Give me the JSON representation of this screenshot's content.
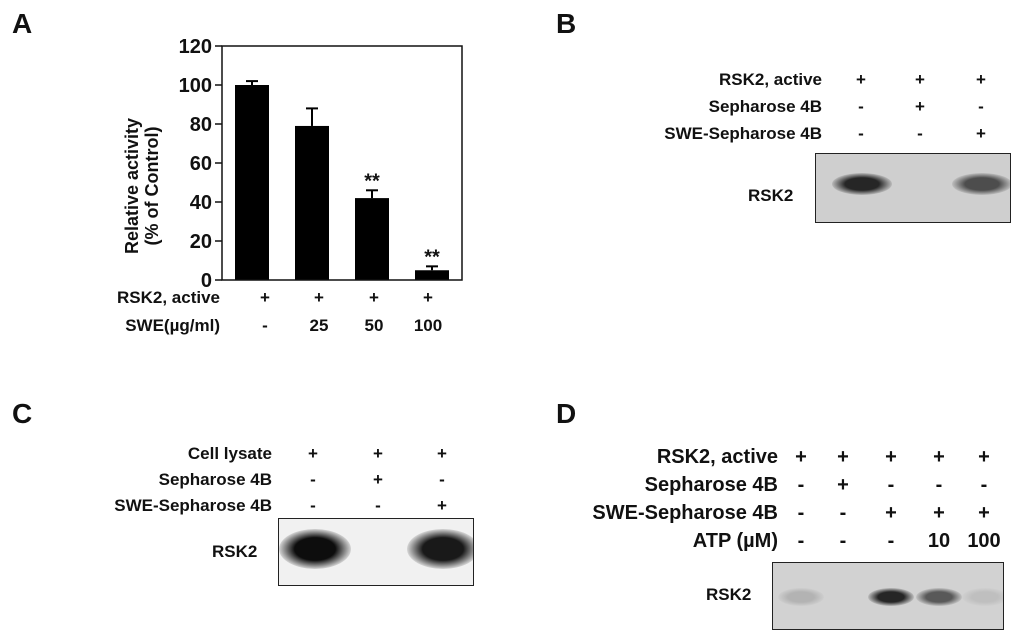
{
  "panels": {
    "a": {
      "letter": "A",
      "conditions": [
        {
          "label": "RSK2, active",
          "values": [
            "+",
            "+",
            "+",
            "+"
          ]
        },
        {
          "label": "SWE(µg/ml)",
          "values": [
            "-",
            "25",
            "50",
            "100"
          ]
        }
      ]
    },
    "b": {
      "letter": "B",
      "conditions": [
        {
          "label": "RSK2, active",
          "values": [
            "+",
            "+",
            "+"
          ]
        },
        {
          "label": "Sepharose 4B",
          "values": [
            "-",
            "+",
            "-"
          ]
        },
        {
          "label": "SWE-Sepharose 4B",
          "values": [
            "-",
            "-",
            "+"
          ]
        }
      ],
      "blot_label": "RSK2",
      "bands": [
        0.85,
        0.0,
        0.7
      ]
    },
    "c": {
      "letter": "C",
      "conditions": [
        {
          "label": "Cell lysate",
          "values": [
            "+",
            "+",
            "+"
          ]
        },
        {
          "label": "Sepharose 4B",
          "values": [
            "-",
            "+",
            "-"
          ]
        },
        {
          "label": "SWE-Sepharose 4B",
          "values": [
            "-",
            "-",
            "+"
          ]
        }
      ],
      "blot_label": "RSK2",
      "bands": [
        0.95,
        0.0,
        0.9
      ]
    },
    "d": {
      "letter": "D",
      "conditions": [
        {
          "label": "RSK2, active",
          "values": [
            "+",
            "+",
            "+",
            "+",
            "+"
          ]
        },
        {
          "label": "Sepharose 4B",
          "values": [
            "-",
            "+",
            "-",
            "-",
            "-"
          ]
        },
        {
          "label": "SWE-Sepharose 4B",
          "values": [
            "-",
            "-",
            "+",
            "+",
            "+"
          ]
        },
        {
          "label": "ATP (µM)",
          "values": [
            "-",
            "-",
            "-",
            "10",
            "100"
          ]
        }
      ],
      "blot_label": "RSK2",
      "bands": [
        0.3,
        0.0,
        0.85,
        0.65,
        0.25
      ]
    }
  },
  "chart_data": {
    "type": "bar",
    "ylabel": "Relative activity\n(% of Control)",
    "ylabel_lines": [
      "Relative activity",
      "(% of Control)"
    ],
    "xlabel": "",
    "ylim": [
      0,
      120
    ],
    "yticks": [
      0,
      20,
      40,
      60,
      80,
      100,
      120
    ],
    "categories": [
      "-",
      "25",
      "50",
      "100"
    ],
    "values": [
      100,
      79,
      42,
      5
    ],
    "errors": [
      2,
      9,
      4,
      2
    ],
    "annotations": [
      "",
      "",
      "**",
      "**"
    ],
    "bar_color": "#000000"
  }
}
